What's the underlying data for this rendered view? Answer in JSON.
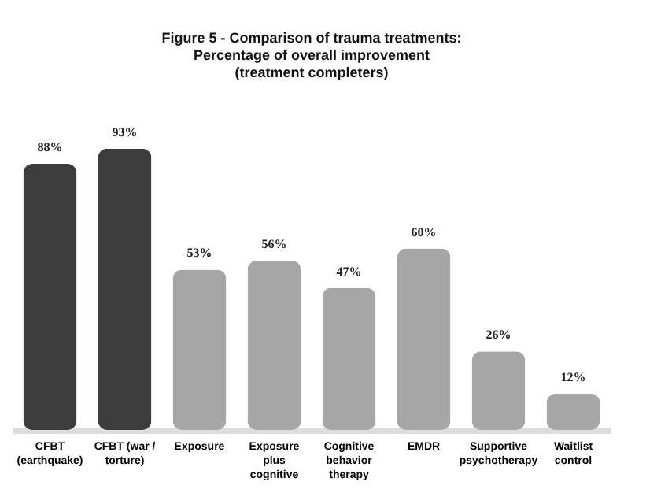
{
  "chart_data": {
    "type": "bar",
    "title": [
      "Figure 5 - Comparison of  trauma treatments:",
      "Percentage of overall improvement",
      "(treatment completers)"
    ],
    "categories": [
      "CFBT (earthquake)",
      "CFBT (war / torture)",
      "Exposure",
      "Exposure plus cognitive",
      "Cognitive behavior therapy",
      "EMDR",
      "Supportive psychotherapy",
      "Waitlist control"
    ],
    "values": [
      88,
      93,
      53,
      56,
      47,
      60,
      26,
      12
    ],
    "value_labels": [
      "88%",
      "93%",
      "53%",
      "56%",
      "47%",
      "60%",
      "26%",
      "12%"
    ],
    "colors": [
      "#3c3c3c",
      "#3c3c3c",
      "#a6a6a6",
      "#a6a6a6",
      "#a6a6a6",
      "#a6a6a6",
      "#a6a6a6",
      "#a6a6a6"
    ]
  }
}
